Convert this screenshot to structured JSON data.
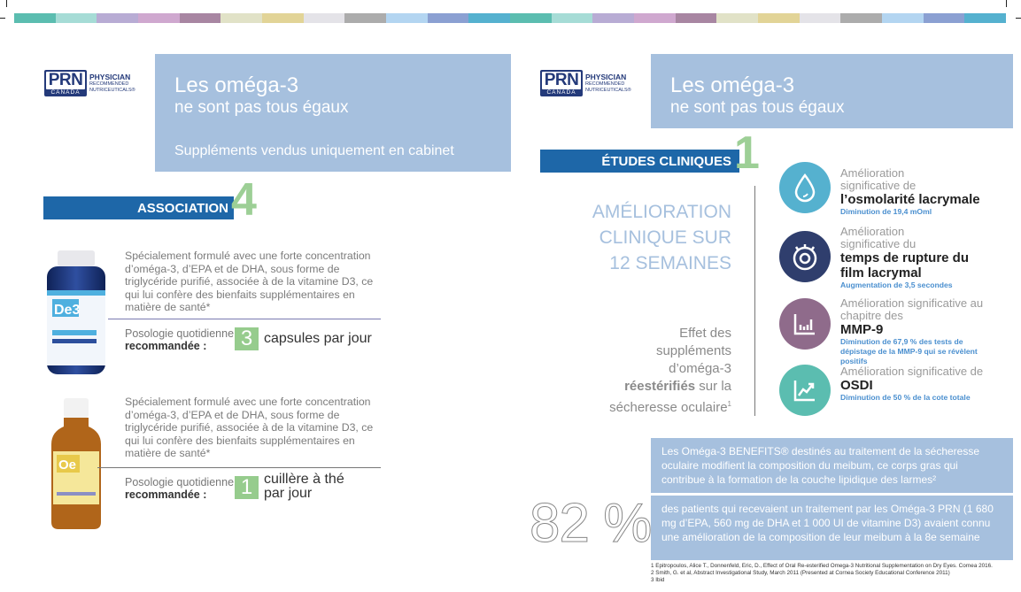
{
  "colorbar": [
    "#5bbdb0",
    "#a6dcd6",
    "#b8acd4",
    "#cfa8cf",
    "#a886a2",
    "#e1e2c7",
    "#e2d497",
    "#e4e3e8",
    "#acacac",
    "#b3d5f1",
    "#8ba0d2",
    "#55b1cf",
    "#5bbdb0",
    "#a6dcd6",
    "#b8acd4",
    "#cfa8cf",
    "#a886a2",
    "#e1e2c7",
    "#e2d497",
    "#e4e3e8",
    "#acacac",
    "#b3d5f1",
    "#8ba0d2",
    "#55b1cf"
  ],
  "logo": {
    "mark": "PRN",
    "country": "CANADA",
    "line1": "PHYSICIAN",
    "line2": "RECOMMENDED",
    "line3": "NUTRICEUTICALS®"
  },
  "left": {
    "title": "Les oméga-3",
    "subtitle": "ne sont pas tous égaux",
    "tagline": "Suppléments vendus uniquement en cabinet",
    "section": {
      "label": "ASSOCIATION",
      "number": "4"
    },
    "products": [
      {
        "name": "De 3",
        "description": "Spécialement formulé avec une forte concentration d’oméga-3, d’EPA et de DHA, sous forme de triglycéride purifié, associée à de la vitamine D3, ce qui lui confère des bienfaits supplémentaires en matière de santé*",
        "dose_label_1": "Posologie quotidienne",
        "dose_label_2": "recommandée :",
        "dose_number": "3",
        "dose_unit_1": "capsules par jour",
        "dose_unit_2": ""
      },
      {
        "name": "Oe",
        "description": "Spécialement formulé avec une forte concentration d’oméga-3, d’EPA et de DHA, sous forme de triglycéride purifié, associée à de la vitamine D3, ce qui lui confère des bienfaits supplémentaires en matière de santé*",
        "dose_label_1": "Posologie quotidienne",
        "dose_label_2": "recommandée :",
        "dose_number": "1",
        "dose_unit_1": "cuillère à thé",
        "dose_unit_2": "par jour"
      }
    ]
  },
  "right": {
    "title": "Les oméga-3",
    "subtitle": "ne sont pas tous égaux",
    "section": {
      "label": "ÉTUDES CLINIQUES",
      "number": "1"
    },
    "heading": [
      "AMÉLIORATION",
      "CLINIQUE SUR",
      "12 SEMAINES"
    ],
    "effect": {
      "l1": "Effet des",
      "l2": "suppléments",
      "l3": "d’oméga-3",
      "bold": "réestérifiés",
      "l4": " sur la",
      "l5": "sécheresse oculaire",
      "sup": "1"
    },
    "results": [
      {
        "icon": "water-drop-icon",
        "color": "#55b1cf",
        "a": "Amélioration significative de",
        "b": "l’osmolarité lacrymale",
        "c": "Diminution de 19,4 mOml"
      },
      {
        "icon": "stopwatch-eye-icon",
        "color": "#2f3e6d",
        "a": "Amélioration significative du",
        "b": "temps de rupture du film lacrymal",
        "c": "Augmentation de 3,5 secondes"
      },
      {
        "icon": "bar-chart-icon",
        "color": "#8f6b8b",
        "a": "Amélioration significative au chapitre des",
        "b": "MMP-9",
        "c": "Diminution de 67,9 % des tests de dépistage de la MMP-9 qui se révèlent positifs"
      },
      {
        "icon": "trend-up-icon",
        "color": "#5bbdb0",
        "a": "Amélioration significative de",
        "b": "OSDI",
        "c": "Diminution de 50 % de la cote totale"
      }
    ],
    "benefits_text": "Les Oméga-3 BENEFITS® destinés au traitement de la sécheresse oculaire modifient la composition du meibum, ce corps gras qui contribue à la formation de la couche lipidique des larmes²",
    "stat": "82 %",
    "stat_text": "des patients qui recevaient un traitement par les Oméga-3 PRN (1 680 mg d’EPA, 560 mg de DHA et 1 000 UI de vitamine D3) avaient connu une amélioration de la composition de leur meibum à la 8e semaine",
    "footnotes": [
      "1  Epitropoulos, Alice T., Donnenfeld, Eric, D., Effect of Oral Re-esterified Omega-3 Nutritional Supplementation on Dry Eyes. Cornea 2016.",
      "2  Smith, G. et al, Abstract Investigational Study, March 2011 (Presented at Cornea Society Educational Conference 2011)",
      "3  Ibid"
    ]
  }
}
